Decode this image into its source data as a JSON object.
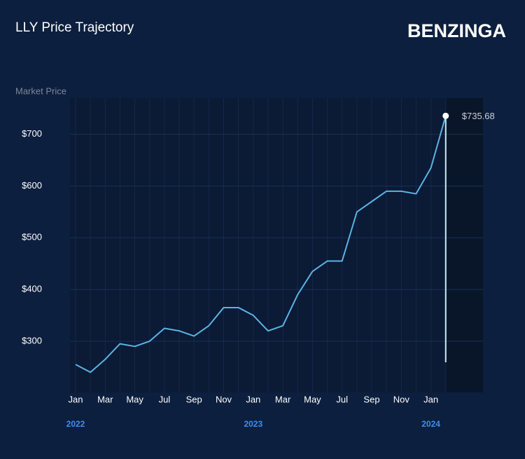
{
  "chart_data": {
    "type": "line",
    "title": "LLY Price Trajectory",
    "brand": "BENZINGA",
    "y_axis_label": "Market Price",
    "x": [
      "2022-01",
      "2022-02",
      "2022-03",
      "2022-04",
      "2022-05",
      "2022-06",
      "2022-07",
      "2022-08",
      "2022-09",
      "2022-10",
      "2022-11",
      "2022-12",
      "2023-01",
      "2023-02",
      "2023-03",
      "2023-04",
      "2023-05",
      "2023-06",
      "2023-07",
      "2023-08",
      "2023-09",
      "2023-10",
      "2023-11",
      "2023-12",
      "2024-01",
      "2024-02"
    ],
    "series": [
      {
        "name": "LLY",
        "color": "#5ab4e5",
        "values": [
          255,
          240,
          265,
          295,
          290,
          300,
          325,
          320,
          310,
          330,
          365,
          365,
          350,
          320,
          330,
          390,
          435,
          455,
          455,
          550,
          570,
          590,
          590,
          585,
          635,
          735.68
        ],
        "value_labels": [
          null,
          null,
          null,
          null,
          null,
          null,
          null,
          null,
          null,
          null,
          null,
          null,
          null,
          null,
          null,
          null,
          null,
          null,
          null,
          null,
          null,
          null,
          null,
          null,
          null,
          "$735.68"
        ]
      }
    ],
    "ylim": [
      201,
      770
    ],
    "yticks": [
      {
        "value": 300,
        "label": "$300"
      },
      {
        "value": 400,
        "label": "$400"
      },
      {
        "value": 500,
        "label": "$500"
      },
      {
        "value": 600,
        "label": "$600"
      },
      {
        "value": 700,
        "label": "$700"
      }
    ],
    "xticks": [
      {
        "value": "2022-01",
        "label": "Jan"
      },
      {
        "value": "2022-03",
        "label": "Mar"
      },
      {
        "value": "2022-05",
        "label": "May"
      },
      {
        "value": "2022-07",
        "label": "Jul"
      },
      {
        "value": "2022-09",
        "label": "Sep"
      },
      {
        "value": "2022-11",
        "label": "Nov"
      },
      {
        "value": "2023-01",
        "label": "Jan"
      },
      {
        "value": "2023-03",
        "label": "Mar"
      },
      {
        "value": "2023-05",
        "label": "May"
      },
      {
        "value": "2023-07",
        "label": "Jul"
      },
      {
        "value": "2023-09",
        "label": "Sep"
      },
      {
        "value": "2023-11",
        "label": "Nov"
      },
      {
        "value": "2024-01",
        "label": "Jan"
      }
    ],
    "year_labels": [
      {
        "value": "2022-01",
        "label": "2022"
      },
      {
        "value": "2023-01",
        "label": "2023"
      },
      {
        "value": "2024-01",
        "label": "2024"
      }
    ],
    "grid": true
  }
}
